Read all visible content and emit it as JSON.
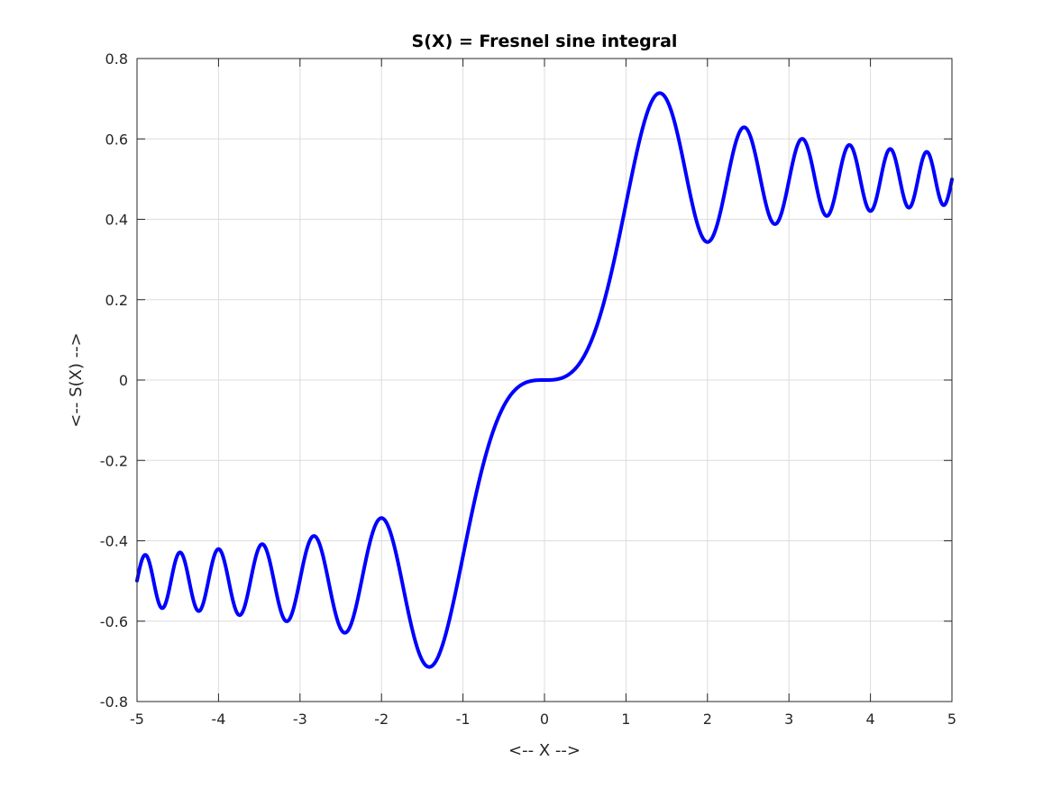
{
  "chart_data": {
    "type": "line",
    "title": "S(X) = Fresnel sine integral",
    "xlabel": "<-- X -->",
    "ylabel": "<-- S(X) -->",
    "xlim": [
      -5,
      5
    ],
    "ylim": [
      -0.8,
      0.8
    ],
    "xticks": [
      -5,
      -4,
      -3,
      -2,
      -1,
      0,
      1,
      2,
      3,
      4,
      5
    ],
    "xtick_labels": [
      "-5",
      "-4",
      "-3",
      "-2",
      "-1",
      "0",
      "1",
      "2",
      "3",
      "4",
      "5"
    ],
    "yticks": [
      -0.8,
      -0.6,
      -0.4,
      -0.2,
      0,
      0.2,
      0.4,
      0.6,
      0.8
    ],
    "ytick_labels": [
      "-0.8",
      "-0.6",
      "-0.4",
      "-0.2",
      "0",
      "0.2",
      "0.4",
      "0.6",
      "0.8"
    ],
    "grid": true,
    "series": [
      {
        "color": "#0000ff",
        "function": "fresnel_sine_integral",
        "x_range": [
          -5,
          5
        ],
        "points": [
          [
            -5,
            -0.4992
          ],
          [
            -4,
            -0.4205
          ],
          [
            -3,
            -0.4963
          ],
          [
            -2,
            -0.3434
          ],
          [
            -1.414,
            -0.7139
          ],
          [
            -1,
            -0.4383
          ],
          [
            -0.5,
            -0.0647
          ],
          [
            0,
            0
          ],
          [
            0.5,
            0.0647
          ],
          [
            1,
            0.4383
          ],
          [
            1.414,
            0.7139
          ],
          [
            2,
            0.3434
          ],
          [
            3,
            0.4963
          ],
          [
            4,
            0.4205
          ],
          [
            5,
            0.4992
          ]
        ]
      }
    ]
  }
}
